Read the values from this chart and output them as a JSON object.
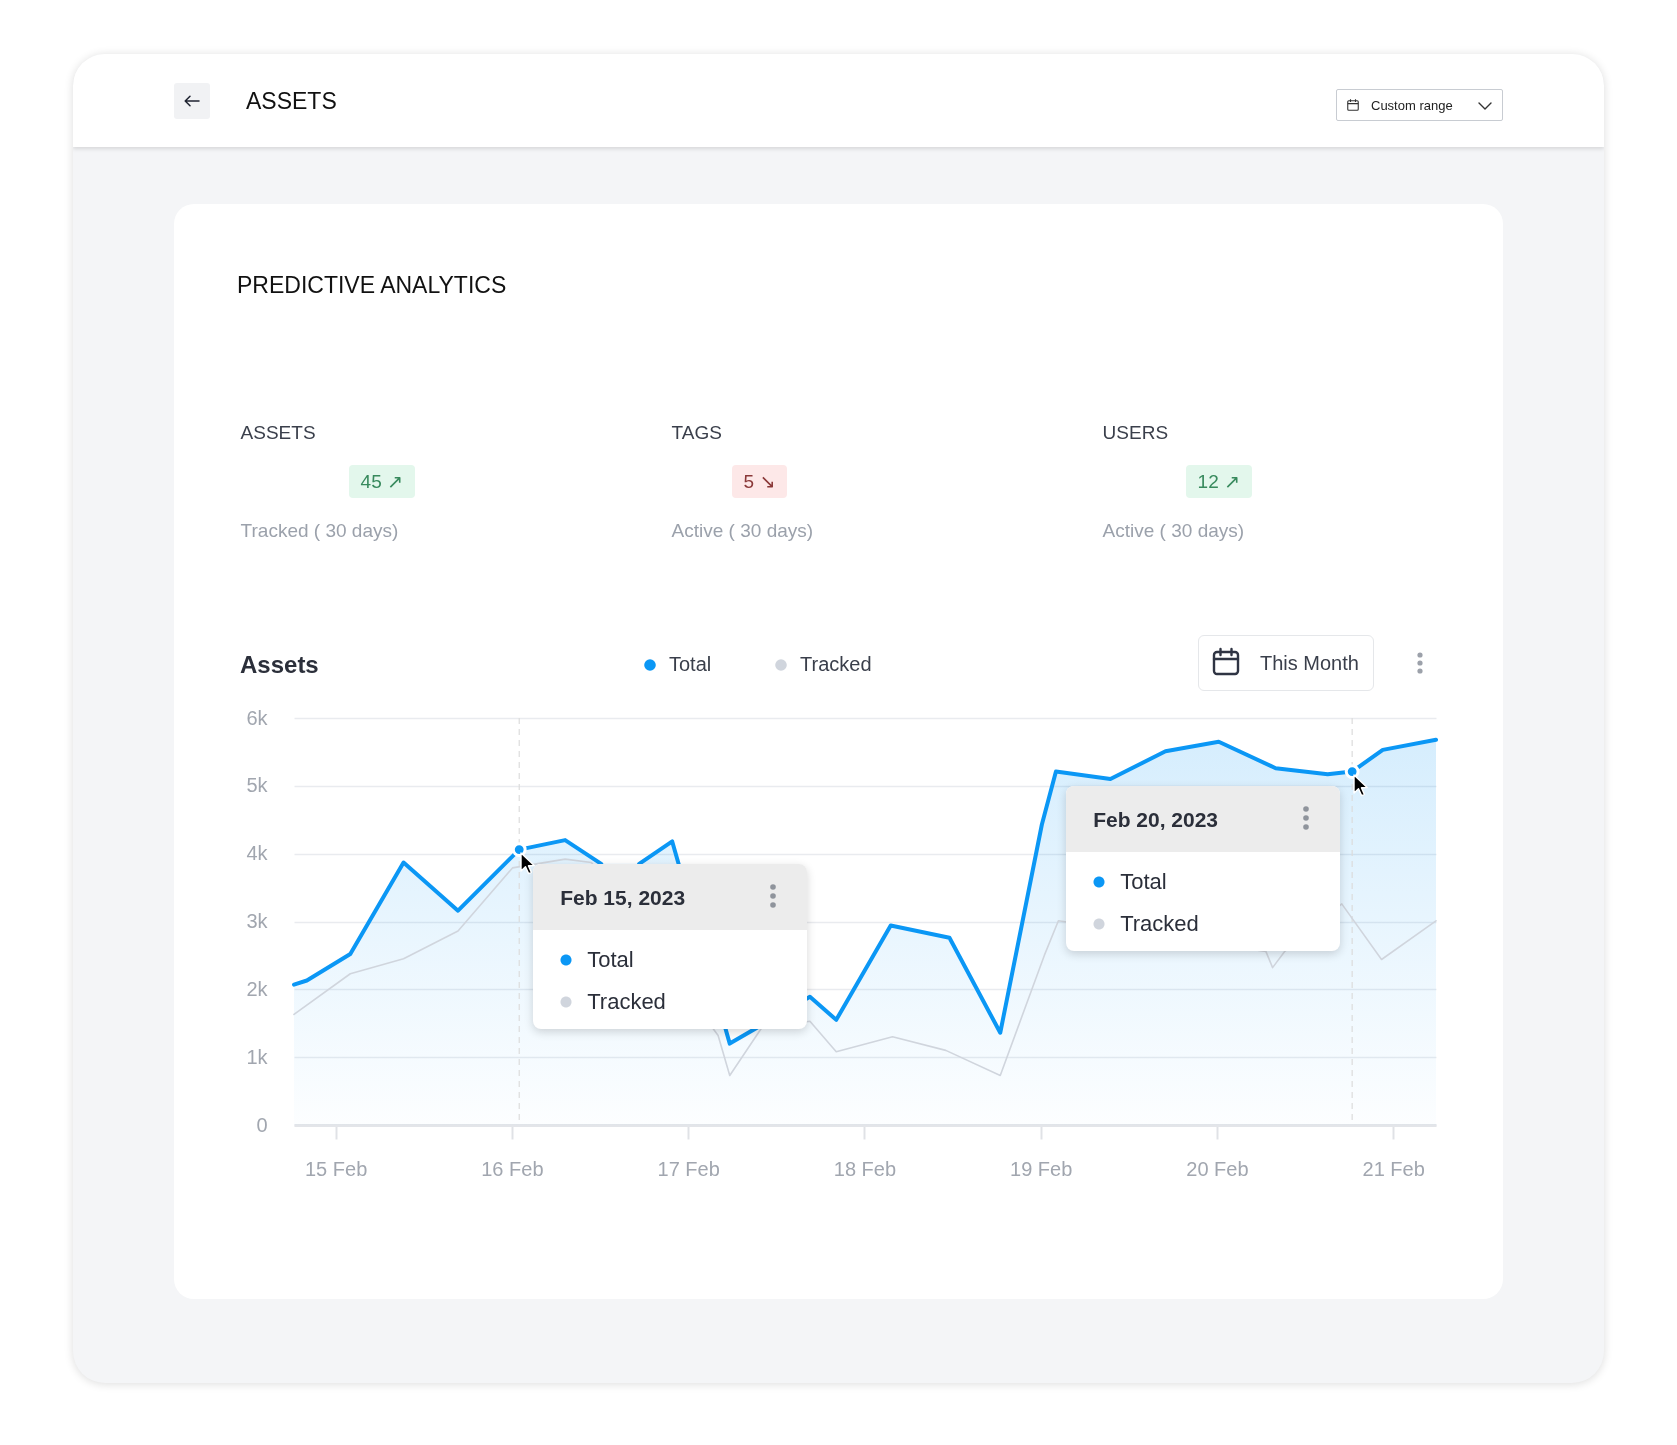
{
  "chart_data": [
    {
      "type": "other",
      "title": "ASSETS",
      "subtitle": "PREDICTIVE ANALYTICS",
      "categories": [
        "ASSETS",
        "TAGS",
        "USERS"
      ],
      "value_labels": [
        "45 ↗",
        "5 ↘",
        "12 ↗"
      ],
      "colors": [
        "#e3f7ec",
        "#fde8e8",
        "#e3f7ec"
      ],
      "annotations": [
        "Tracked ( 30 days)",
        "Active ( 30 days)",
        "Active ( 30 days)",
        "Custom range"
      ]
    },
    {
      "type": "line",
      "title": "Assets",
      "series": [
        {
          "name": "Total",
          "type": "area",
          "color": "#0b97f5",
          "x": [
            "2023-02-14T18:20",
            "2023-02-14T20:05",
            "2023-02-15T02:00",
            "2023-02-15T09:15",
            "2023-02-15T16:40",
            "2023-02-16T01:00",
            "2023-02-16T07:15",
            "2023-02-16T12:10",
            "2023-02-16T14:45",
            "2023-02-16T17:20",
            "2023-02-16T21:50",
            "2023-02-17T05:40",
            "2023-02-17T16:35",
            "2023-02-17T20:10",
            "2023-02-18T03:35",
            "2023-02-18T11:35",
            "2023-02-18T18:30",
            "2023-02-19T00:10",
            "2023-02-19T02:05",
            "2023-02-19T09:30",
            "2023-02-19T17:00",
            "2023-02-20T00:15",
            "2023-02-20T08:00",
            "2023-02-20T15:05",
            "2023-02-20T18:25",
            "2023-02-20T22:35",
            "2023-02-21T05:50"
          ],
          "values": [
            2070,
            2130,
            2520,
            3870,
            3160,
            4060,
            4200,
            3850,
            null,
            3850,
            4180,
            1200,
            1890,
            1550,
            2940,
            2760,
            1360,
            4430,
            5210,
            5100,
            5510,
            5650,
            5260,
            5170,
            5210,
            5530,
            5680
          ]
        },
        {
          "name": "Tracked",
          "type": "line",
          "color": "#d0d5dd",
          "x": [
            "2023-02-14T18:20",
            "2023-02-15T02:00",
            "2023-02-15T09:15",
            "2023-02-15T16:40",
            "2023-02-16T00:05",
            "2023-02-16T07:15",
            "2023-02-16T10:50",
            "2023-02-17T04:05",
            "2023-02-17T05:40",
            "2023-02-17T10:00",
            "2023-02-17T16:35",
            "2023-02-17T20:10",
            "2023-02-18T03:50",
            "2023-02-18T11:05",
            "2023-02-18T18:30",
            "2023-02-19T00:30",
            "2023-02-19T02:25",
            "2023-02-20T06:40",
            "2023-02-20T07:35",
            "2023-02-20T09:15",
            "2023-02-20T17:00",
            "2023-02-20T22:25",
            "2023-02-21T05:50"
          ],
          "values": [
            1630,
            2230,
            2450,
            2860,
            3790,
            3920,
            3870,
            1320,
            730,
            1430,
            1530,
            1080,
            1300,
            1100,
            730,
            2500,
            3010,
            2560,
            2320,
            2560,
            3260,
            2440,
            3010
          ]
        }
      ],
      "xlim": [
        "2023-02-14T18:20",
        "2023-02-21T05:50"
      ],
      "xticks": [
        {
          "value": "2023-02-15",
          "label": "15 Feb"
        },
        {
          "value": "2023-02-16",
          "label": "16 Feb"
        },
        {
          "value": "2023-02-17",
          "label": "17 Feb"
        },
        {
          "value": "2023-02-18",
          "label": "18 Feb"
        },
        {
          "value": "2023-02-19",
          "label": "19 Feb"
        },
        {
          "value": "2023-02-20",
          "label": "20 Feb"
        },
        {
          "value": "2023-02-21",
          "label": "21 Feb"
        }
      ],
      "ylim": [
        0,
        6000
      ],
      "yticks": [
        0,
        {
          "value": 1000,
          "label": "1k"
        },
        {
          "value": 2000,
          "label": "2k"
        },
        {
          "value": 3000,
          "label": "3k"
        },
        {
          "value": 4000,
          "label": "4k"
        },
        {
          "value": 5000,
          "label": "5k"
        },
        {
          "value": 6000,
          "label": "6k"
        }
      ],
      "grid": "y",
      "legend": "top",
      "ref_lines": [
        {
          "axis": "x",
          "value": "2023-02-16T01:00",
          "color": "#dcdcdc",
          "line_style": "dashed"
        },
        {
          "axis": "x",
          "value": "2023-02-20T18:25",
          "color": "#dcdcdc",
          "line_style": "dashed"
        }
      ],
      "annotations": [
        "This Month",
        "Feb 15, 2023",
        "Feb 20, 2023"
      ]
    }
  ]
}
